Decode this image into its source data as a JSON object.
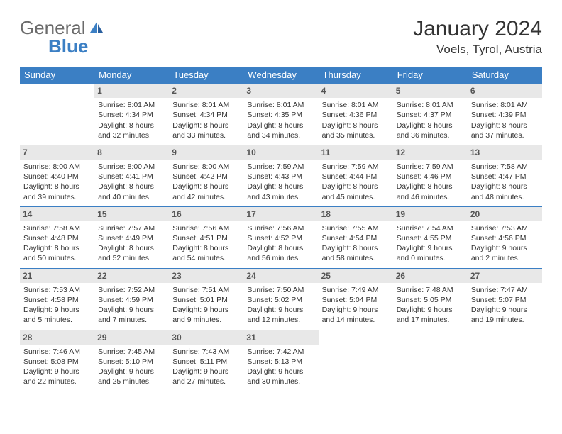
{
  "logo": {
    "part1": "General",
    "part2": "Blue"
  },
  "title": "January 2024",
  "location": "Voels, Tyrol, Austria",
  "colors": {
    "header_bg": "#3b7fc4",
    "header_text": "#ffffff",
    "daynum_bg": "#e8e8e8",
    "rule": "#3b7fc4",
    "logo_gray": "#6b6b6b",
    "logo_blue": "#3b7fc4"
  },
  "weekdays": [
    "Sunday",
    "Monday",
    "Tuesday",
    "Wednesday",
    "Thursday",
    "Friday",
    "Saturday"
  ],
  "weeks": [
    [
      null,
      {
        "n": "1",
        "sunrise": "8:01 AM",
        "sunset": "4:34 PM",
        "daylight": "8 hours and 32 minutes."
      },
      {
        "n": "2",
        "sunrise": "8:01 AM",
        "sunset": "4:34 PM",
        "daylight": "8 hours and 33 minutes."
      },
      {
        "n": "3",
        "sunrise": "8:01 AM",
        "sunset": "4:35 PM",
        "daylight": "8 hours and 34 minutes."
      },
      {
        "n": "4",
        "sunrise": "8:01 AM",
        "sunset": "4:36 PM",
        "daylight": "8 hours and 35 minutes."
      },
      {
        "n": "5",
        "sunrise": "8:01 AM",
        "sunset": "4:37 PM",
        "daylight": "8 hours and 36 minutes."
      },
      {
        "n": "6",
        "sunrise": "8:01 AM",
        "sunset": "4:39 PM",
        "daylight": "8 hours and 37 minutes."
      }
    ],
    [
      {
        "n": "7",
        "sunrise": "8:00 AM",
        "sunset": "4:40 PM",
        "daylight": "8 hours and 39 minutes."
      },
      {
        "n": "8",
        "sunrise": "8:00 AM",
        "sunset": "4:41 PM",
        "daylight": "8 hours and 40 minutes."
      },
      {
        "n": "9",
        "sunrise": "8:00 AM",
        "sunset": "4:42 PM",
        "daylight": "8 hours and 42 minutes."
      },
      {
        "n": "10",
        "sunrise": "7:59 AM",
        "sunset": "4:43 PM",
        "daylight": "8 hours and 43 minutes."
      },
      {
        "n": "11",
        "sunrise": "7:59 AM",
        "sunset": "4:44 PM",
        "daylight": "8 hours and 45 minutes."
      },
      {
        "n": "12",
        "sunrise": "7:59 AM",
        "sunset": "4:46 PM",
        "daylight": "8 hours and 46 minutes."
      },
      {
        "n": "13",
        "sunrise": "7:58 AM",
        "sunset": "4:47 PM",
        "daylight": "8 hours and 48 minutes."
      }
    ],
    [
      {
        "n": "14",
        "sunrise": "7:58 AM",
        "sunset": "4:48 PM",
        "daylight": "8 hours and 50 minutes."
      },
      {
        "n": "15",
        "sunrise": "7:57 AM",
        "sunset": "4:49 PM",
        "daylight": "8 hours and 52 minutes."
      },
      {
        "n": "16",
        "sunrise": "7:56 AM",
        "sunset": "4:51 PM",
        "daylight": "8 hours and 54 minutes."
      },
      {
        "n": "17",
        "sunrise": "7:56 AM",
        "sunset": "4:52 PM",
        "daylight": "8 hours and 56 minutes."
      },
      {
        "n": "18",
        "sunrise": "7:55 AM",
        "sunset": "4:54 PM",
        "daylight": "8 hours and 58 minutes."
      },
      {
        "n": "19",
        "sunrise": "7:54 AM",
        "sunset": "4:55 PM",
        "daylight": "9 hours and 0 minutes."
      },
      {
        "n": "20",
        "sunrise": "7:53 AM",
        "sunset": "4:56 PM",
        "daylight": "9 hours and 2 minutes."
      }
    ],
    [
      {
        "n": "21",
        "sunrise": "7:53 AM",
        "sunset": "4:58 PM",
        "daylight": "9 hours and 5 minutes."
      },
      {
        "n": "22",
        "sunrise": "7:52 AM",
        "sunset": "4:59 PM",
        "daylight": "9 hours and 7 minutes."
      },
      {
        "n": "23",
        "sunrise": "7:51 AM",
        "sunset": "5:01 PM",
        "daylight": "9 hours and 9 minutes."
      },
      {
        "n": "24",
        "sunrise": "7:50 AM",
        "sunset": "5:02 PM",
        "daylight": "9 hours and 12 minutes."
      },
      {
        "n": "25",
        "sunrise": "7:49 AM",
        "sunset": "5:04 PM",
        "daylight": "9 hours and 14 minutes."
      },
      {
        "n": "26",
        "sunrise": "7:48 AM",
        "sunset": "5:05 PM",
        "daylight": "9 hours and 17 minutes."
      },
      {
        "n": "27",
        "sunrise": "7:47 AM",
        "sunset": "5:07 PM",
        "daylight": "9 hours and 19 minutes."
      }
    ],
    [
      {
        "n": "28",
        "sunrise": "7:46 AM",
        "sunset": "5:08 PM",
        "daylight": "9 hours and 22 minutes."
      },
      {
        "n": "29",
        "sunrise": "7:45 AM",
        "sunset": "5:10 PM",
        "daylight": "9 hours and 25 minutes."
      },
      {
        "n": "30",
        "sunrise": "7:43 AM",
        "sunset": "5:11 PM",
        "daylight": "9 hours and 27 minutes."
      },
      {
        "n": "31",
        "sunrise": "7:42 AM",
        "sunset": "5:13 PM",
        "daylight": "9 hours and 30 minutes."
      },
      null,
      null,
      null
    ]
  ],
  "labels": {
    "sunrise": "Sunrise:",
    "sunset": "Sunset:",
    "daylight": "Daylight:"
  }
}
